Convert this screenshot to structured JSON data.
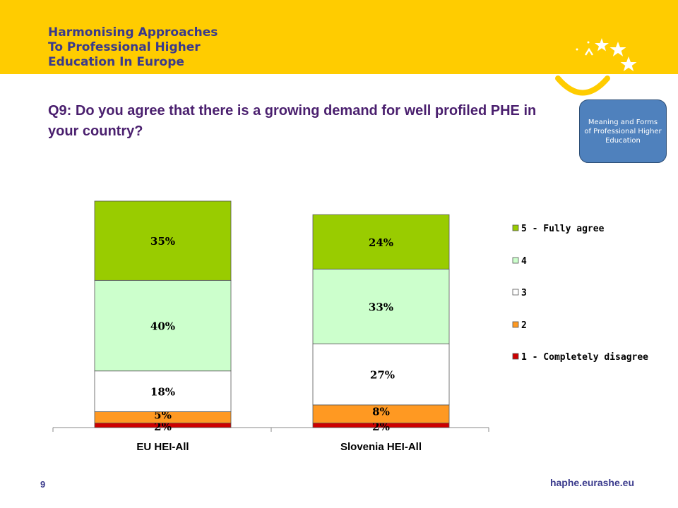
{
  "header": {
    "brand_lines": [
      "Harmonising Approaches",
      "To Professional Higher",
      "Education In Europe"
    ],
    "badge_text": "Meaning and Forms of Professional Higher Education",
    "colors": {
      "banner": "#ffcc00",
      "brand_text": "#3a3a8c",
      "badge": "#4f81bd"
    },
    "logo_icon": "stars-and-smile-icon"
  },
  "slide": {
    "question": "Q9: Do you agree that there is a growing demand for well profiled PHE in your country?",
    "footer_url": "haphe.eurashe.eu",
    "page_number": "9"
  },
  "chart_data": {
    "type": "bar",
    "stacked": true,
    "categories": [
      "EU HEI-All",
      "Slovenia HEI-All"
    ],
    "series": [
      {
        "name": "1 - Completely disagree",
        "values": [
          2,
          2
        ],
        "labels": [
          "2%",
          "2%"
        ],
        "color": "#cc0000"
      },
      {
        "name": "2",
        "values": [
          5,
          8
        ],
        "labels": [
          "5%",
          "8%"
        ],
        "color": "#ff9922"
      },
      {
        "name": "3",
        "values": [
          18,
          27
        ],
        "labels": [
          "18%",
          "27%"
        ],
        "color": "#ffffff"
      },
      {
        "name": "4",
        "values": [
          40,
          33
        ],
        "labels": [
          "40%",
          "33%"
        ],
        "color": "#ccffcc"
      },
      {
        "name": "5 - Fully agree",
        "values": [
          35,
          24
        ],
        "labels": [
          "35%",
          "24%"
        ],
        "color": "#99cc00"
      }
    ],
    "ylim": [
      0,
      100
    ],
    "grid": false,
    "legend_position": "right"
  }
}
